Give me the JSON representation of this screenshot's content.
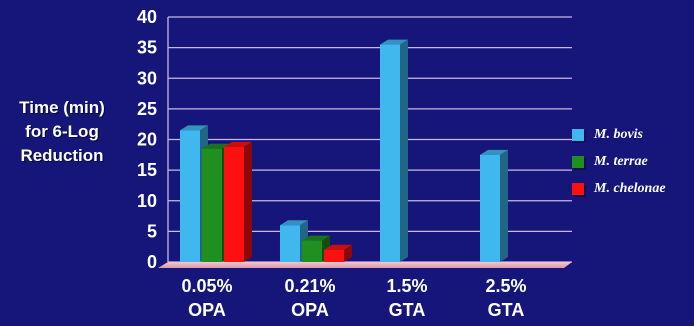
{
  "chart_data": {
    "type": "bar",
    "categories": [
      [
        "0.05%",
        "OPA"
      ],
      [
        "0.21%",
        "OPA"
      ],
      [
        "1.5%",
        "GTA"
      ],
      [
        "2.5%",
        "GTA"
      ]
    ],
    "series": [
      {
        "name": "M. bovis",
        "color": "#3fb8f0",
        "values": [
          21.5,
          6,
          35.5,
          17.5
        ]
      },
      {
        "name": "M. terrae",
        "color": "#1f8f1f",
        "values": [
          18.5,
          3.5,
          null,
          null
        ]
      },
      {
        "name": "M. chelonae",
        "color": "#ff1010",
        "values": [
          18.8,
          2,
          null,
          null
        ]
      }
    ],
    "ylabel_lines": [
      "Time (min)",
      "for 6-Log",
      "Reduction"
    ],
    "yticks": [
      0,
      5,
      10,
      15,
      20,
      25,
      30,
      35,
      40
    ],
    "ylim": [
      0,
      40
    ],
    "grid": true,
    "legend_position": "right"
  }
}
